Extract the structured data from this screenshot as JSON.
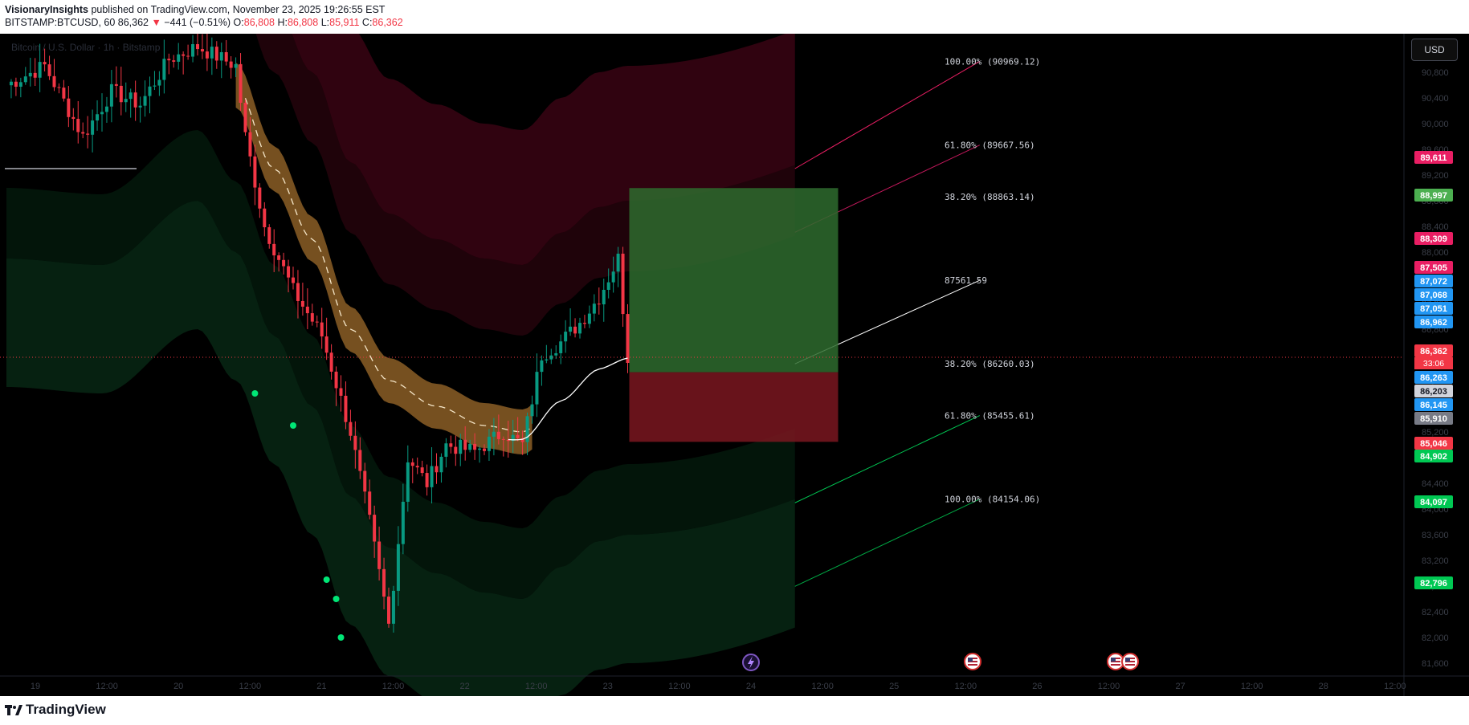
{
  "header": {
    "author": "VisionaryInsights",
    "published": "published on TradingView.com, November 23, 2025 19:26:55 EST",
    "symbol": "BITSTAMP:BTCUSD, 60",
    "last": "86,362",
    "change_arrow": "▼",
    "change": "−441 (−0.51%)",
    "o_label": "O:",
    "o": "86,808",
    "h_label": "H:",
    "h": "86,808",
    "l_label": "L:",
    "l": "85,911",
    "c_label": "C:",
    "c": "86,362"
  },
  "ghost_title": "Bitcoin / U.S. Dollar · 1h · Bitstamp",
  "currency_button": "USD",
  "footer": {
    "brand": "TradingView"
  },
  "colors": {
    "background": "#000000",
    "up": "#089981",
    "down": "#f23645",
    "upper_band": "#8a0a2e",
    "lower_band": "#0b3d1f",
    "basis_band": "#a8722e",
    "long_target": "#2e6b2e",
    "long_stop": "#7a1620"
  },
  "chart_data": {
    "type": "candlestick",
    "title": "BITSTAMP:BTCUSD, 60",
    "ylim": [
      81400,
      91400
    ],
    "y_ticks": [
      "81,600",
      "82,000",
      "82,400",
      "82,800",
      "83,200",
      "83,600",
      "84,000",
      "84,400",
      "84,800",
      "85,200",
      "85,600",
      "86,000",
      "86,400",
      "86,800",
      "87,200",
      "87,600",
      "88,000",
      "88,400",
      "88,800",
      "89,200",
      "89,600",
      "90,000",
      "90,400",
      "90,800"
    ],
    "x_ticks": [
      "19",
      "12:00",
      "20",
      "12:00",
      "21",
      "12:00",
      "22",
      "12:00",
      "23",
      "12:00",
      "24",
      "12:00",
      "25",
      "12:00",
      "26",
      "12:00",
      "27",
      "12:00",
      "28",
      "12:00"
    ],
    "last_price_line": 86362,
    "countdown": "33:06",
    "price_labels": [
      {
        "text": "89,611",
        "color": "#e91e63"
      },
      {
        "text": "88,997",
        "color": "#4caf50"
      },
      {
        "text": "88,309",
        "color": "#e91e63"
      },
      {
        "text": "87,505",
        "color": "#e91e63"
      },
      {
        "text": "87,072",
        "color": "#2196f3"
      },
      {
        "text": "87,068",
        "color": "#2196f3"
      },
      {
        "text": "87,051",
        "color": "#2196f3"
      },
      {
        "text": "86,962",
        "color": "#2196f3"
      },
      {
        "text": "86,362",
        "color": "#f23645"
      },
      {
        "text": "86,263",
        "color": "#2196f3"
      },
      {
        "text": "86,203",
        "color": "#d1d4dc"
      },
      {
        "text": "86,145",
        "color": "#2196f3"
      },
      {
        "text": "85,910",
        "color": "#787b86"
      },
      {
        "text": "85,046",
        "color": "#f23645"
      },
      {
        "text": "84,902",
        "color": "#00c853"
      },
      {
        "text": "84,097",
        "color": "#00c853"
      },
      {
        "text": "82,796",
        "color": "#00c853"
      }
    ],
    "fib_levels": [
      {
        "label": "100.00%",
        "text": "(90969.12)"
      },
      {
        "label": "61.80%",
        "text": "(89667.56)"
      },
      {
        "label": "38.20%",
        "text": "(88863.14)"
      },
      {
        "label": "",
        "text": "87561.59"
      },
      {
        "label": "38.20%",
        "text": "(86260.03)"
      },
      {
        "label": "61.80%",
        "text": "(85455.61)"
      },
      {
        "label": "100.00%",
        "text": "(84154.06)"
      }
    ],
    "position": {
      "entry": 86130,
      "target": 88997,
      "stop": 85046
    },
    "events": [
      "lightning",
      "us-flag",
      "us-flag",
      "us-flag"
    ]
  }
}
